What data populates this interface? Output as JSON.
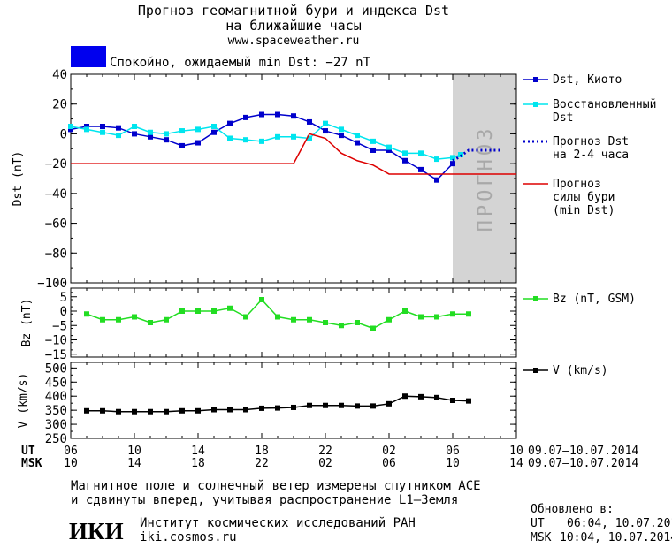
{
  "header": {
    "title_line1": "Прогноз геомагнитной бури и индекса Dst",
    "title_line2": "на ближайшие часы",
    "url": "www.spaceweather.ru",
    "status_color": "#0000ee",
    "status_text": "Спокойно, ожидаемый min Dst: −27 nT"
  },
  "forecast_band_label": "ПРОГНОЗ",
  "time_axis": {
    "ut_label": "UT",
    "msk_label": "MSK",
    "ut_ticks": [
      "06",
      "10",
      "14",
      "18",
      "22",
      "02",
      "06",
      "10"
    ],
    "msk_ticks": [
      "10",
      "14",
      "18",
      "22",
      "02",
      "06",
      "10",
      "14"
    ],
    "ut_range": "09.07–10.07.2014",
    "msk_range": "09.07–10.07.2014"
  },
  "chart_data": [
    {
      "type": "line",
      "panel": "dst",
      "ylabel": "Dst (nT)",
      "ylim": [
        -100,
        40
      ],
      "yticks": [
        40,
        20,
        0,
        -20,
        -40,
        -60,
        -80,
        -100
      ],
      "x_unit": "hours since 06:00 UT 09.07.2014",
      "xlim": [
        0,
        28
      ],
      "forecast_shade_start": 24,
      "series": [
        {
          "name": "Dst, Киото",
          "color": "#0000cc",
          "marker": "square",
          "x": [
            0,
            1,
            2,
            3,
            4,
            5,
            6,
            7,
            8,
            9,
            10,
            11,
            12,
            13,
            14,
            15,
            16,
            17,
            18,
            19,
            20,
            21,
            22,
            23,
            24
          ],
          "values": [
            3,
            5,
            5,
            4,
            0,
            -2,
            -4,
            -8,
            -6,
            1,
            7,
            11,
            13,
            13,
            12,
            8,
            2,
            -1,
            -6,
            -11,
            -11,
            -18,
            -24,
            -31,
            -20
          ]
        },
        {
          "name": "Восстановленный Dst",
          "color": "#00e5ee",
          "marker": "square",
          "x": [
            0,
            1,
            2,
            3,
            4,
            5,
            6,
            7,
            8,
            9,
            10,
            11,
            12,
            13,
            14,
            15,
            16,
            17,
            18,
            19,
            20,
            21,
            22,
            23,
            24,
            24.5
          ],
          "values": [
            5,
            3,
            1,
            -1,
            5,
            1,
            0,
            2,
            3,
            5,
            -3,
            -4,
            -5,
            -2,
            -2,
            -3,
            7,
            3,
            -1,
            -5,
            -9,
            -13,
            -13,
            -17,
            -16,
            -14
          ]
        },
        {
          "name": "Прогноз Dst на 2-4 часа",
          "color": "#0000cc",
          "style": "dotted",
          "x": [
            24,
            24.5,
            25,
            26,
            27
          ],
          "values": [
            -18,
            -15,
            -11,
            -11,
            -11
          ]
        },
        {
          "name": "Прогноз силы бури (min Dst)",
          "color": "#dd0000",
          "style": "step",
          "x": [
            0,
            14,
            15,
            16,
            17,
            18,
            19,
            20,
            28
          ],
          "values": [
            -20,
            -20,
            0,
            -3,
            -13,
            -18,
            -21,
            -27,
            -27
          ]
        }
      ],
      "legend": [
        {
          "name_lines": [
            "Dst, Киото"
          ],
          "color": "#0000cc",
          "style": "marker"
        },
        {
          "name_lines": [
            "Восстановленный",
            "Dst"
          ],
          "color": "#00e5ee",
          "style": "marker"
        },
        {
          "name_lines": [
            "Прогноз Dst",
            "на 2-4 часа"
          ],
          "color": "#0000cc",
          "style": "dotted"
        },
        {
          "name_lines": [
            "Прогноз",
            "силы бури",
            "(min Dst)"
          ],
          "color": "#dd0000",
          "style": "solid"
        }
      ]
    },
    {
      "type": "line",
      "panel": "bz",
      "ylabel": "Bz (nT)",
      "ylim": [
        -16,
        8
      ],
      "yticks": [
        5,
        0,
        -5,
        -10,
        -15
      ],
      "series": [
        {
          "name": "Bz (nT, GSM)",
          "color": "#22dd22",
          "marker": "square",
          "x": [
            1,
            2,
            3,
            4,
            5,
            6,
            7,
            8,
            9,
            10,
            11,
            12,
            13,
            14,
            15,
            16,
            17,
            18,
            19,
            20,
            21,
            22,
            23,
            24,
            25
          ],
          "values": [
            -1,
            -3,
            -3,
            -2,
            -4,
            -3,
            0,
            0,
            0,
            1,
            -2,
            4,
            -2,
            -3,
            -3,
            -4,
            -5,
            -4,
            -6,
            -3,
            0,
            -2,
            -2,
            -1,
            -1
          ]
        }
      ],
      "legend": [
        {
          "name_lines": [
            "Bz (nT, GSM)"
          ],
          "color": "#22dd22",
          "style": "marker"
        }
      ]
    },
    {
      "type": "line",
      "panel": "v",
      "ylabel": "V (km/s)",
      "ylim": [
        250,
        520
      ],
      "yticks": [
        500,
        450,
        400,
        350,
        300,
        250
      ],
      "series": [
        {
          "name": "V (km/s)",
          "color": "#000000",
          "marker": "square",
          "x": [
            1,
            2,
            3,
            4,
            5,
            6,
            7,
            8,
            9,
            10,
            11,
            12,
            13,
            14,
            15,
            16,
            17,
            18,
            19,
            20,
            21,
            22,
            23,
            24,
            25
          ],
          "values": [
            348,
            348,
            345,
            345,
            345,
            345,
            348,
            348,
            352,
            352,
            352,
            357,
            358,
            360,
            367,
            367,
            367,
            365,
            365,
            373,
            400,
            398,
            395,
            385,
            383
          ]
        }
      ],
      "legend": [
        {
          "name_lines": [
            "V (km/s)"
          ],
          "color": "#000000",
          "style": "marker"
        }
      ]
    }
  ],
  "footer": {
    "note_line1": "Магнитное поле и солнечный ветер измерены спутником ACE",
    "note_line2": "и сдвинуты вперед, учитывая распространение L1–Земля",
    "logo_text": "ИКИ",
    "institute": "Институт космических исследований РАН",
    "institute_url": "iki.cosmos.ru",
    "updated_label": "Обновлено в:",
    "updated_ut_label": "UT",
    "updated_ut": "06:04, 10.07.2014",
    "updated_msk_label": "MSK",
    "updated_msk": "10:04, 10.07.2014"
  }
}
